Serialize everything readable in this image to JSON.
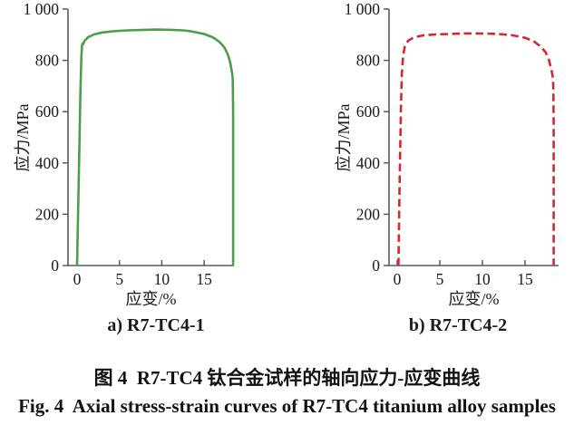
{
  "figure": {
    "caption_cn": "图 4  R7-TC4 钛合金试样的轴向应力-应变曲线",
    "caption_en": "Fig. 4  Axial stress-strain curves of R7-TC4 titanium alloy samples"
  },
  "colors": {
    "axis": "#5a5a5a",
    "tick_text": "#1b1b1b",
    "curve_green": "#4b9e4b",
    "curve_red": "#d62632"
  },
  "chart_data": [
    {
      "type": "line",
      "subcaption": "a) R7-TC4-1",
      "xlabel": "应变/%",
      "ylabel": "应力/MPa",
      "xlim": [
        -1,
        18.5
      ],
      "ylim": [
        0,
        1000
      ],
      "xticks": [
        0,
        5,
        10,
        15
      ],
      "yticks": [
        0,
        200,
        400,
        600,
        800,
        1000
      ],
      "ytick_labels": [
        "0",
        "200",
        "400",
        "600",
        "800",
        "1 000"
      ],
      "grid": false,
      "legend": "none",
      "series": [
        {
          "name": "R7-TC4-1",
          "color": "#4b9e4b",
          "line_style": "solid",
          "x": [
            0,
            0.25,
            0.4,
            0.5,
            0.58,
            0.65,
            0.72,
            0.9,
            1.3,
            2,
            3,
            4.5,
            6,
            8,
            9.5,
            11,
            12.5,
            13.5,
            15,
            16,
            16.8,
            17.4,
            17.8,
            18.1,
            18.3,
            18.38,
            18.42,
            18.42
          ],
          "y": [
            0,
            420,
            680,
            810,
            858,
            866,
            863,
            877,
            890,
            901,
            909,
            914,
            917,
            919,
            920,
            919,
            917,
            913,
            903,
            890,
            872,
            850,
            822,
            788,
            750,
            725,
            600,
            0
          ]
        }
      ]
    },
    {
      "type": "line",
      "subcaption": "b) R7-TC4-2",
      "xlabel": "应变/%",
      "ylabel": "应力/MPa",
      "xlim": [
        -1,
        19
      ],
      "ylim": [
        0,
        1000
      ],
      "xticks": [
        0,
        5,
        10,
        15
      ],
      "yticks": [
        0,
        200,
        400,
        600,
        800,
        1000
      ],
      "ytick_labels": [
        "0",
        "200",
        "400",
        "600",
        "800",
        "1 000"
      ],
      "grid": false,
      "legend": "none",
      "series": [
        {
          "name": "R7-TC4-2",
          "color": "#d62632",
          "line_style": "dashed",
          "x": [
            0.15,
            0.3,
            0.45,
            0.55,
            0.7,
            0.9,
            1.3,
            2,
            3,
            4.5,
            6,
            8,
            9.5,
            11,
            12.5,
            13.5,
            15,
            16,
            16.8,
            17.4,
            17.8,
            18.1,
            18.25,
            18.32,
            18.36,
            18.36
          ],
          "y": [
            0,
            350,
            620,
            750,
            820,
            855,
            877,
            890,
            897,
            901,
            903,
            905,
            905,
            904,
            901,
            898,
            888,
            875,
            855,
            832,
            802,
            765,
            735,
            700,
            550,
            0
          ]
        }
      ]
    }
  ]
}
